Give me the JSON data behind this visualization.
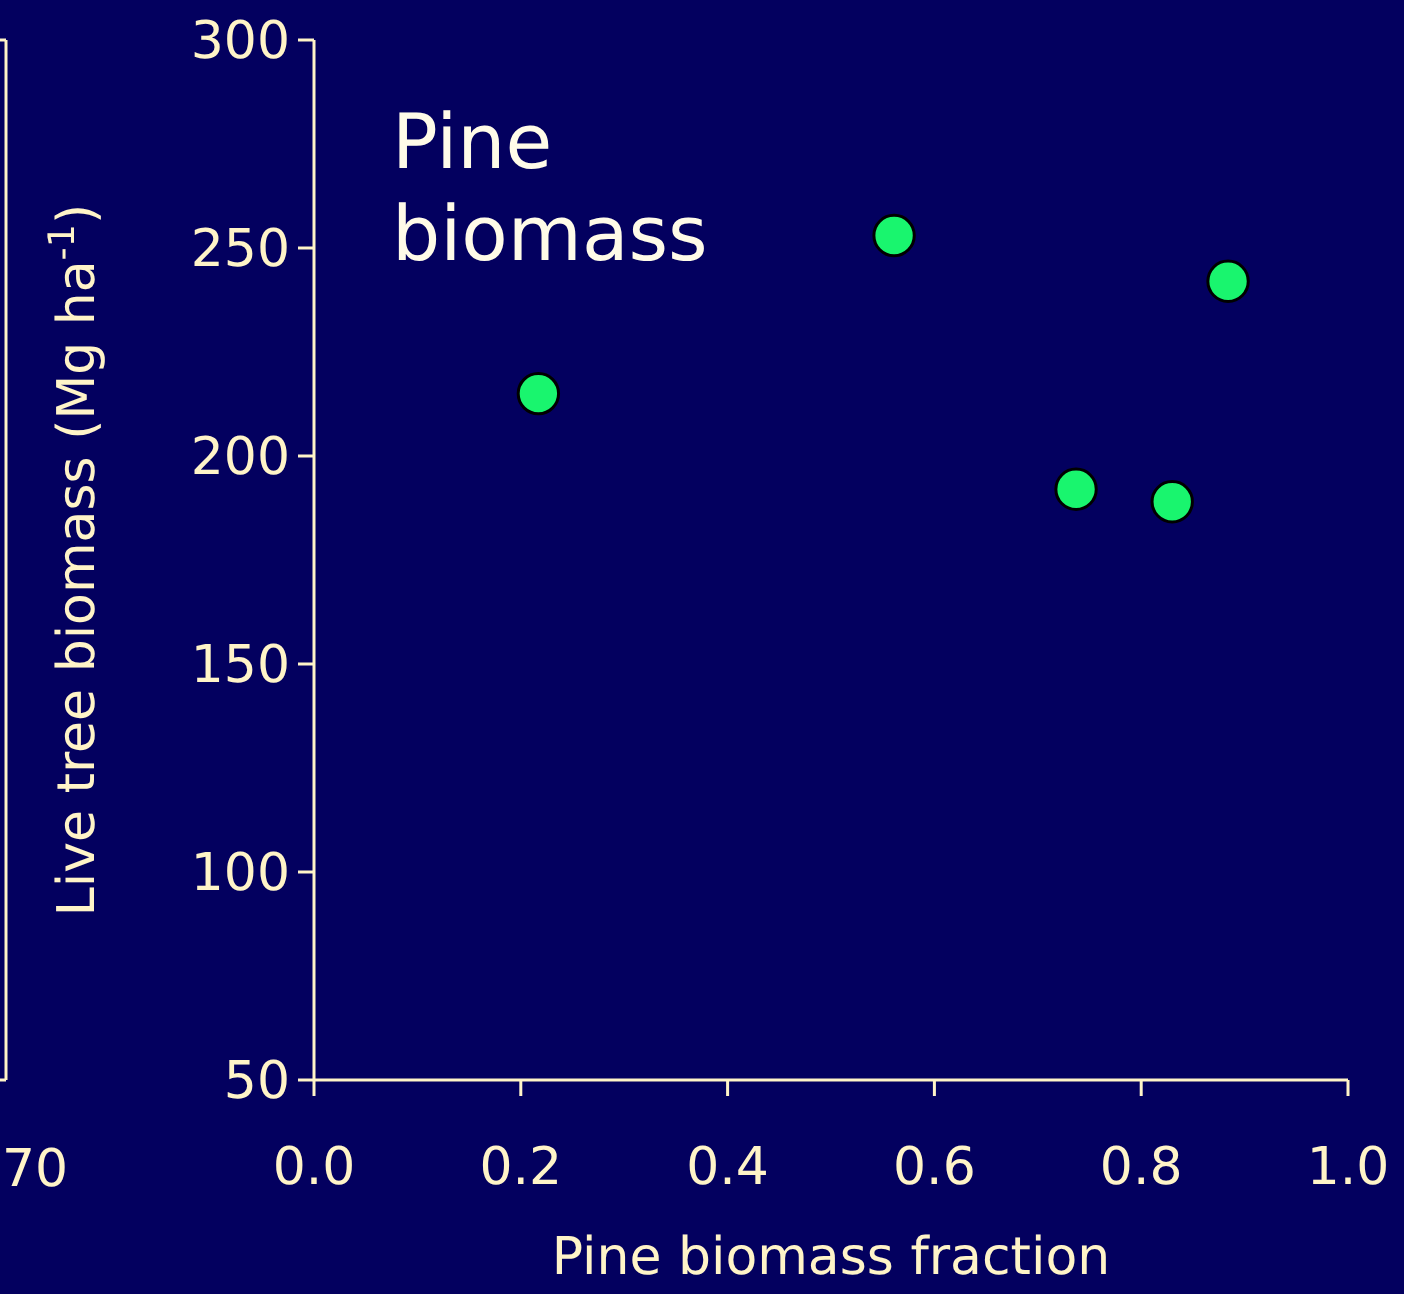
{
  "chart_data": {
    "type": "scatter",
    "title": "Pine biomass",
    "xlabel": "Pine biomass fraction",
    "ylabel": "Live tree biomass (Mg ha$^{-1}$)",
    "x": [
      0.217,
      0.561,
      0.737,
      0.83,
      0.884
    ],
    "series": [
      {
        "color": "#19f56e",
        "values": [
          215,
          253,
          192,
          189,
          242
        ]
      }
    ],
    "xlim": [
      0,
      1
    ],
    "xticks": [
      {
        "value": 0,
        "label": "0.0"
      },
      0.2,
      0.4,
      0.6,
      0.8,
      {
        "value": 1,
        "label": "1.0"
      }
    ],
    "ylim": [
      50,
      300
    ],
    "yticks": [
      50,
      100,
      150,
      200,
      250,
      300
    ],
    "marker": "circle",
    "grid": false,
    "annotations": [
      "70"
    ]
  }
}
